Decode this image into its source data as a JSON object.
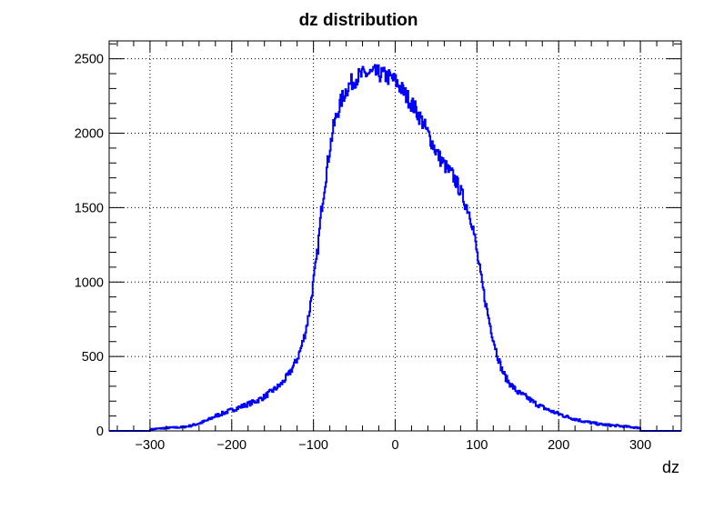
{
  "chart_data": {
    "type": "line",
    "title": "dz distribution",
    "xlabel": "dz",
    "ylabel": "",
    "xlim": [
      -350,
      350
    ],
    "ylim": [
      0,
      2620
    ],
    "grid": true,
    "x_ticks": [
      -300,
      -200,
      -100,
      0,
      100,
      200,
      300
    ],
    "x_tick_labels": [
      "−300",
      "−200",
      "−100",
      "0",
      "100",
      "200",
      "300"
    ],
    "y_ticks": [
      0,
      500,
      1000,
      1500,
      2000,
      2500
    ],
    "y_tick_labels": [
      "0",
      "500",
      "1000",
      "1500",
      "2000",
      "2500"
    ],
    "series": [
      {
        "line_color": "#0000ff",
        "x": [
          -300,
          -280,
          -260,
          -250,
          -240,
          -230,
          -220,
          -210,
          -200,
          -190,
          -180,
          -170,
          -160,
          -150,
          -140,
          -130,
          -120,
          -115,
          -110,
          -105,
          -100,
          -95,
          -90,
          -85,
          -80,
          -75,
          -70,
          -65,
          -60,
          -55,
          -50,
          -45,
          -40,
          -35,
          -30,
          -25,
          -20,
          -15,
          -10,
          -5,
          0,
          5,
          10,
          15,
          20,
          25,
          30,
          35,
          40,
          45,
          50,
          55,
          60,
          65,
          70,
          75,
          80,
          85,
          90,
          95,
          100,
          105,
          110,
          115,
          120,
          125,
          130,
          135,
          140,
          150,
          160,
          170,
          180,
          190,
          200,
          210,
          220,
          230,
          240,
          250,
          260,
          270,
          280,
          290,
          300
        ],
        "y": [
          10,
          20,
          25,
          35,
          50,
          70,
          100,
          120,
          140,
          160,
          180,
          200,
          230,
          270,
          310,
          380,
          480,
          560,
          660,
          800,
          1000,
          1200,
          1500,
          1700,
          1900,
          2050,
          2150,
          2230,
          2290,
          2330,
          2360,
          2380,
          2390,
          2400,
          2400,
          2400,
          2400,
          2390,
          2380,
          2370,
          2350,
          2320,
          2280,
          2240,
          2200,
          2160,
          2110,
          2060,
          2000,
          1940,
          1880,
          1830,
          1790,
          1750,
          1720,
          1670,
          1610,
          1540,
          1480,
          1380,
          1200,
          1030,
          880,
          740,
          620,
          510,
          420,
          360,
          320,
          260,
          230,
          190,
          160,
          135,
          115,
          95,
          80,
          65,
          55,
          45,
          40,
          35,
          30,
          25,
          20
        ]
      }
    ]
  }
}
